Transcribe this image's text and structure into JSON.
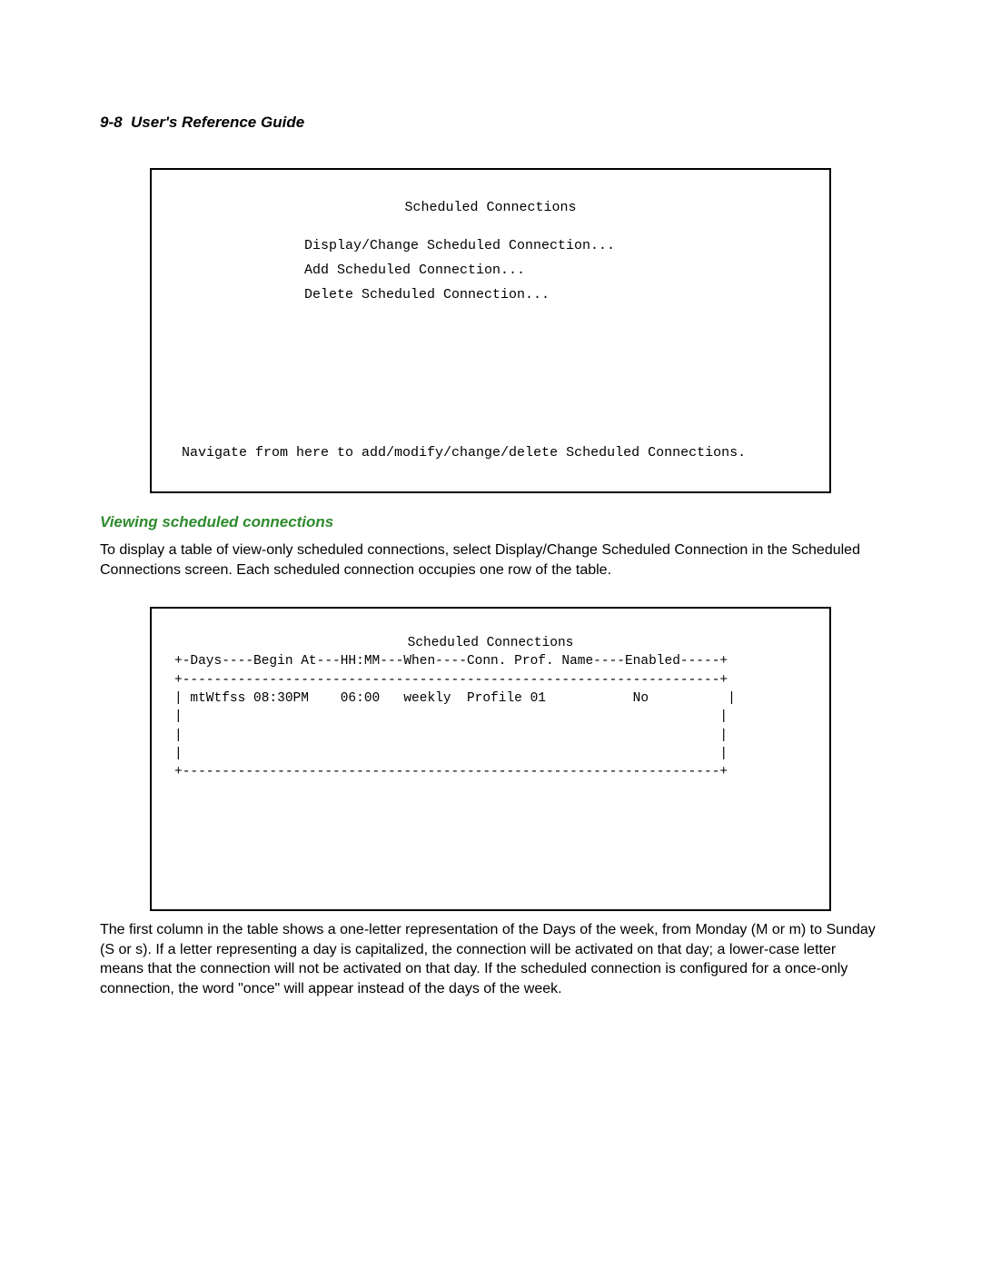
{
  "header": {
    "page_number": "9-8",
    "title": "User's Reference Guide"
  },
  "terminal1": {
    "title": "Scheduled Connections",
    "menu": {
      "item1": "Display/Change Scheduled Connection...",
      "item2": "Add Scheduled Connection...",
      "item3": "Delete Scheduled Connection..."
    },
    "footer": "Navigate from here to add/modify/change/delete Scheduled Connections."
  },
  "section": {
    "heading": "Viewing scheduled connections",
    "paragraph1": "To display a table of view-only scheduled connections, select Display/Change Scheduled Connection in the Scheduled Connections screen. Each scheduled connection occupies one row of the table."
  },
  "terminal2": {
    "title": "Scheduled Connections",
    "table_header": "+-Days----Begin At---HH:MM---When----Conn. Prof. Name----Enabled-----+",
    "table_divider": "+--------------------------------------------------------------------+",
    "row1": "| mtWtfss 08:30PM    06:00   weekly  Profile 01           No          |",
    "row_empty": "|                                                                    |",
    "table_bottom": "+--------------------------------------------------------------------+"
  },
  "paragraph2": "The first column in the table shows a one-letter representation of the Days of the week, from Monday (M or m) to Sunday (S or s). If a letter representing a day is capitalized, the connection will be activated on that day; a lower-case letter means that the connection will not be activated on that day. If the scheduled connection is configured for a once-only connection, the word \"once\" will appear instead of the days of the week."
}
